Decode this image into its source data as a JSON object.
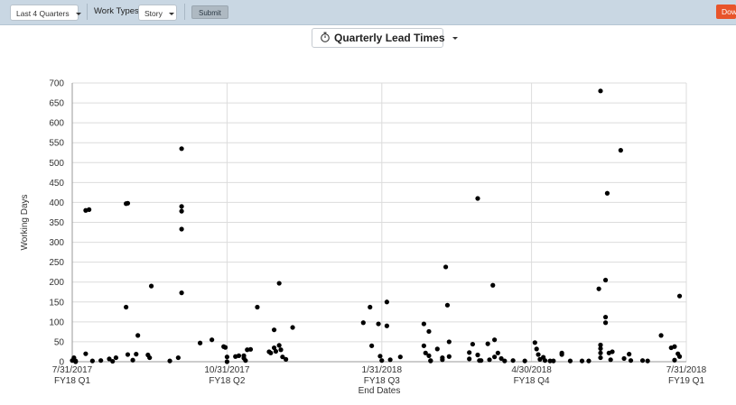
{
  "toolbar": {
    "range_select": "Last 4 Quarters",
    "work_types_label": "Work Types:",
    "work_types_select": "Story",
    "submit_label": "Submit",
    "download_label": "Dow"
  },
  "chart_title_button": "Quarterly Lead Times",
  "colors": {
    "toolbar_bg": "#c9d7e3",
    "download_bg": "#e8542a",
    "point": "#000000",
    "grid": "#dcdcdc"
  },
  "chart_data": {
    "type": "scatter",
    "xlabel": "End Dates",
    "ylabel": "Working Days",
    "ylim": [
      0,
      700
    ],
    "yticks": [
      0,
      50,
      100,
      150,
      200,
      250,
      300,
      350,
      400,
      450,
      500,
      550,
      600,
      650,
      700
    ],
    "xlim": [
      "2017-07-31",
      "2018-07-31"
    ],
    "xticks": [
      {
        "date": "2017-07-31",
        "label": "7/31/2017",
        "sublabel": "FY18 Q1"
      },
      {
        "date": "2017-10-31",
        "label": "10/31/2017",
        "sublabel": "FY18 Q2"
      },
      {
        "date": "2018-01-31",
        "label": "1/31/2018",
        "sublabel": "FY18 Q3"
      },
      {
        "date": "2018-04-30",
        "label": "4/30/2018",
        "sublabel": "FY18 Q4"
      },
      {
        "date": "2018-07-31",
        "label": "7/31/2018",
        "sublabel": "FY19 Q1"
      }
    ],
    "grid": true,
    "points": [
      [
        "2017-07-31",
        3
      ],
      [
        "2017-08-01",
        10
      ],
      [
        "2017-08-02",
        2
      ],
      [
        "2017-08-02",
        0
      ],
      [
        "2017-08-08",
        20
      ],
      [
        "2017-08-08",
        380
      ],
      [
        "2017-08-10",
        382
      ],
      [
        "2017-08-12",
        2
      ],
      [
        "2017-08-17",
        3
      ],
      [
        "2017-08-22",
        7
      ],
      [
        "2017-08-24",
        1
      ],
      [
        "2017-08-26",
        10
      ],
      [
        "2017-09-01",
        397
      ],
      [
        "2017-09-02",
        398
      ],
      [
        "2017-09-01",
        137
      ],
      [
        "2017-09-02",
        18
      ],
      [
        "2017-09-05",
        4
      ],
      [
        "2017-09-07",
        19
      ],
      [
        "2017-09-08",
        66
      ],
      [
        "2017-09-14",
        17
      ],
      [
        "2017-09-15",
        10
      ],
      [
        "2017-09-16",
        190
      ],
      [
        "2017-09-27",
        2
      ],
      [
        "2017-10-02",
        10
      ],
      [
        "2017-10-04",
        535
      ],
      [
        "2017-10-04",
        390
      ],
      [
        "2017-10-04",
        378
      ],
      [
        "2017-10-04",
        333
      ],
      [
        "2017-10-04",
        173
      ],
      [
        "2017-10-15",
        47
      ],
      [
        "2017-10-22",
        55
      ],
      [
        "2017-10-29",
        38
      ],
      [
        "2017-10-30",
        36
      ],
      [
        "2017-10-31",
        12
      ],
      [
        "2017-10-31",
        0
      ],
      [
        "2017-11-05",
        13
      ],
      [
        "2017-11-07",
        15
      ],
      [
        "2017-11-10",
        15
      ],
      [
        "2017-11-10",
        9
      ],
      [
        "2017-11-11",
        3
      ],
      [
        "2017-11-12",
        30
      ],
      [
        "2017-11-14",
        31
      ],
      [
        "2017-11-18",
        137
      ],
      [
        "2017-11-25",
        25
      ],
      [
        "2017-11-26",
        22
      ],
      [
        "2017-11-28",
        80
      ],
      [
        "2017-11-28",
        35
      ],
      [
        "2017-11-29",
        26
      ],
      [
        "2017-12-01",
        41
      ],
      [
        "2017-12-01",
        197
      ],
      [
        "2017-12-02",
        30
      ],
      [
        "2017-12-03",
        12
      ],
      [
        "2017-12-05",
        6
      ],
      [
        "2017-12-09",
        86
      ],
      [
        "2018-01-20",
        98
      ],
      [
        "2018-01-24",
        137
      ],
      [
        "2018-01-25",
        40
      ],
      [
        "2018-01-29",
        95
      ],
      [
        "2018-01-30",
        14
      ],
      [
        "2018-01-31",
        3
      ],
      [
        "2018-02-03",
        150
      ],
      [
        "2018-02-03",
        90
      ],
      [
        "2018-02-05",
        5
      ],
      [
        "2018-02-11",
        12
      ],
      [
        "2018-02-25",
        95
      ],
      [
        "2018-02-25",
        40
      ],
      [
        "2018-02-26",
        22
      ],
      [
        "2018-02-28",
        76
      ],
      [
        "2018-02-28",
        15
      ],
      [
        "2018-03-01",
        3
      ],
      [
        "2018-03-01",
        2
      ],
      [
        "2018-03-05",
        32
      ],
      [
        "2018-03-08",
        10
      ],
      [
        "2018-03-08",
        5
      ],
      [
        "2018-03-10",
        238
      ],
      [
        "2018-03-11",
        142
      ],
      [
        "2018-03-12",
        50
      ],
      [
        "2018-03-12",
        13
      ],
      [
        "2018-03-24",
        23
      ],
      [
        "2018-03-24",
        7
      ],
      [
        "2018-03-26",
        44
      ],
      [
        "2018-03-29",
        410
      ],
      [
        "2018-03-29",
        17
      ],
      [
        "2018-03-30",
        3
      ],
      [
        "2018-03-31",
        3
      ],
      [
        "2018-04-04",
        45
      ],
      [
        "2018-04-05",
        5
      ],
      [
        "2018-04-07",
        192
      ],
      [
        "2018-04-08",
        55
      ],
      [
        "2018-04-08",
        12
      ],
      [
        "2018-04-10",
        22
      ],
      [
        "2018-04-12",
        8
      ],
      [
        "2018-04-14",
        2
      ],
      [
        "2018-04-19",
        3
      ],
      [
        "2018-04-26",
        2
      ],
      [
        "2018-05-02",
        48
      ],
      [
        "2018-05-03",
        32
      ],
      [
        "2018-05-04",
        18
      ],
      [
        "2018-05-05",
        6
      ],
      [
        "2018-05-07",
        11
      ],
      [
        "2018-05-08",
        3
      ],
      [
        "2018-05-11",
        2
      ],
      [
        "2018-05-13",
        2
      ],
      [
        "2018-05-18",
        22
      ],
      [
        "2018-05-18",
        18
      ],
      [
        "2018-05-23",
        2
      ],
      [
        "2018-05-30",
        2
      ],
      [
        "2018-06-03",
        2
      ],
      [
        "2018-06-09",
        183
      ],
      [
        "2018-06-10",
        680
      ],
      [
        "2018-06-10",
        42
      ],
      [
        "2018-06-10",
        33
      ],
      [
        "2018-06-10",
        22
      ],
      [
        "2018-06-10",
        10
      ],
      [
        "2018-06-13",
        112
      ],
      [
        "2018-06-13",
        98
      ],
      [
        "2018-06-13",
        205
      ],
      [
        "2018-06-14",
        423
      ],
      [
        "2018-06-15",
        22
      ],
      [
        "2018-06-16",
        5
      ],
      [
        "2018-06-17",
        25
      ],
      [
        "2018-06-22",
        531
      ],
      [
        "2018-06-24",
        8
      ],
      [
        "2018-06-27",
        19
      ],
      [
        "2018-06-28",
        3
      ],
      [
        "2018-07-05",
        3
      ],
      [
        "2018-07-08",
        2
      ],
      [
        "2018-07-16",
        66
      ],
      [
        "2018-07-22",
        35
      ],
      [
        "2018-07-24",
        38
      ],
      [
        "2018-07-24",
        4
      ],
      [
        "2018-07-26",
        20
      ],
      [
        "2018-07-27",
        13
      ],
      [
        "2018-07-27",
        165
      ]
    ]
  }
}
